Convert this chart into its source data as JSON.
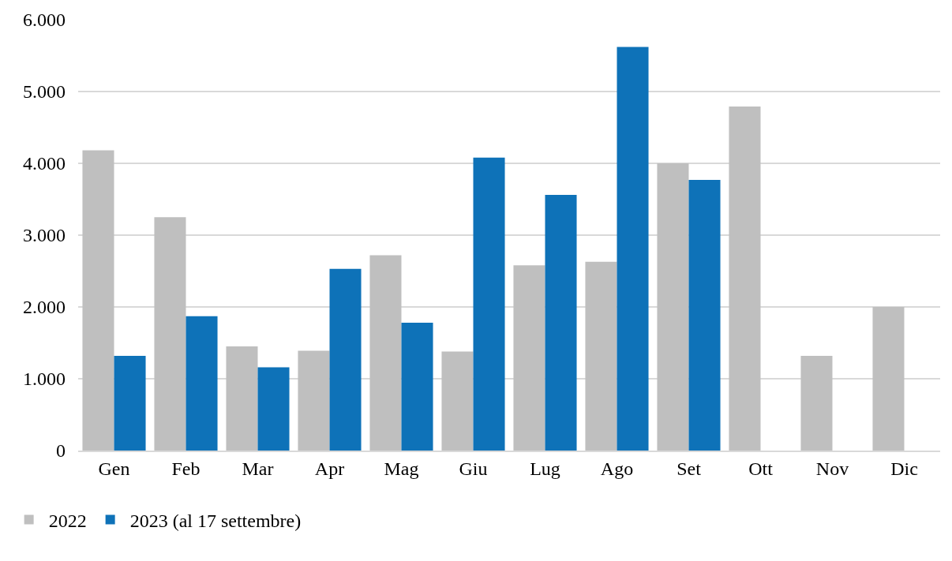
{
  "chart_data": {
    "type": "bar",
    "categories": [
      "Gen",
      "Feb",
      "Mar",
      "Apr",
      "Mag",
      "Giu",
      "Lug",
      "Ago",
      "Set",
      "Ott",
      "Nov",
      "Dic"
    ],
    "series": [
      {
        "name": "2022",
        "color": "#bfbfbf",
        "values": [
          4180,
          3250,
          1450,
          1390,
          2720,
          1380,
          2580,
          2630,
          4000,
          4790,
          1320,
          2000
        ]
      },
      {
        "name": "2023 (al 17 settembre)",
        "color": "#0e72b8",
        "values": [
          1320,
          1870,
          1160,
          2530,
          1780,
          4080,
          3560,
          5620,
          3770,
          null,
          null,
          null
        ]
      }
    ],
    "ylim": [
      0,
      6000
    ],
    "yticks": [
      0,
      {
        "value": 1000,
        "label": "1.000"
      },
      {
        "value": 2000,
        "label": "2.000"
      },
      {
        "value": 3000,
        "label": "3.000"
      },
      {
        "value": 4000,
        "label": "4.000"
      },
      {
        "value": 5000,
        "label": "5.000"
      },
      {
        "value": 6000,
        "label": "6.000"
      }
    ],
    "grid": "y",
    "legend": "bottom left"
  }
}
